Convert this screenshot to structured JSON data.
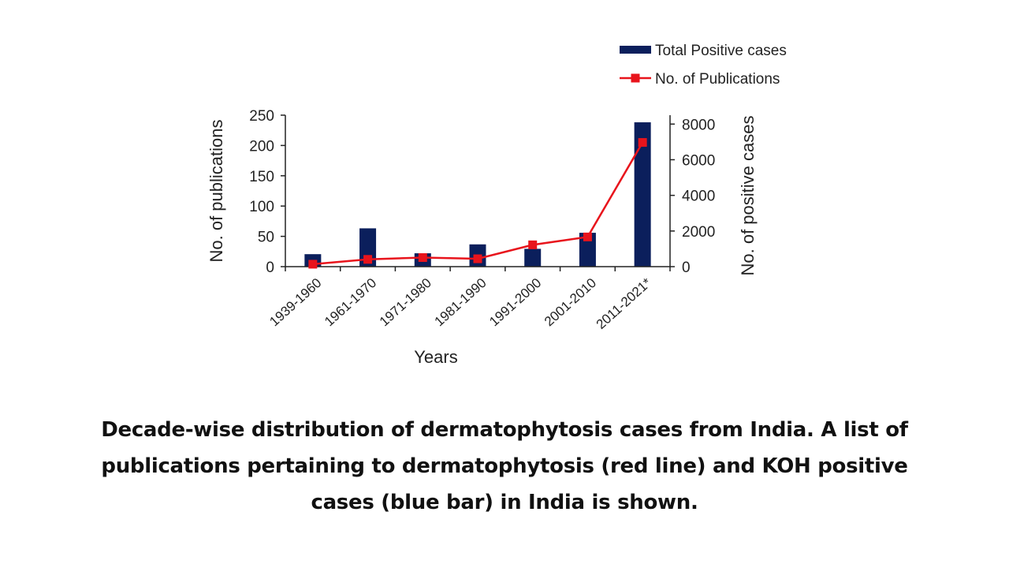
{
  "chart_data": {
    "type": "bar",
    "categories": [
      "1939-1960",
      "1961-1970",
      "1971-1980",
      "1981-1990",
      "1991-2000",
      "2001-2010",
      "2011-2021*"
    ],
    "series": [
      {
        "name": "Total Positive cases",
        "type": "bar",
        "axis": "right",
        "color": "#0b1f5c",
        "values": [
          700,
          2150,
          750,
          1250,
          1000,
          1900,
          8100
        ]
      },
      {
        "name": "No. of Publications",
        "type": "line",
        "axis": "left",
        "color": "#e8141c",
        "values": [
          4,
          12,
          15,
          13,
          36,
          49,
          205
        ]
      }
    ],
    "xlabel": "Years",
    "ylabel_left": "No. of publications",
    "ylabel_right": "No. of positive cases",
    "ylim_left": [
      0,
      250
    ],
    "ylim_right": [
      0,
      8500
    ],
    "yticks_left": [
      0,
      50,
      100,
      150,
      200,
      250
    ],
    "yticks_right": [
      0,
      2000,
      4000,
      6000,
      8000
    ],
    "grid": false,
    "legend_position": "top-right"
  },
  "caption": "Decade-wise distribution of dermatophytosis cases from India. A list of publications pertaining to dermatophytosis (red line) and KOH positive cases (blue bar) in India is shown."
}
